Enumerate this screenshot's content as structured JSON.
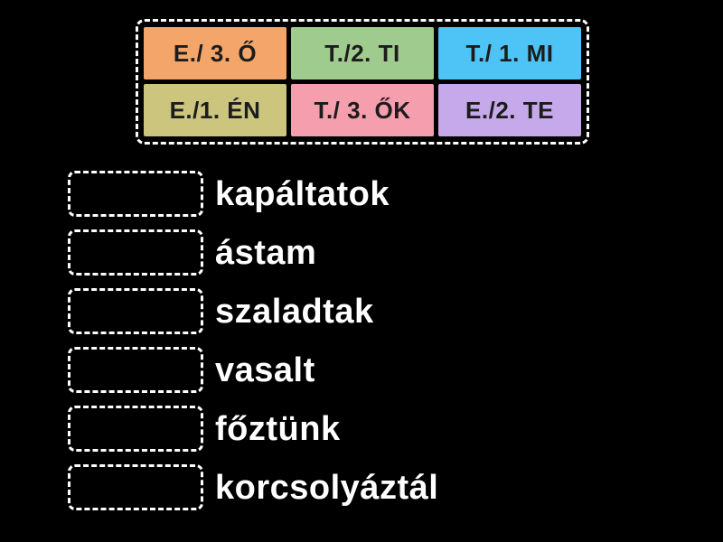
{
  "colors": {
    "background": "#000000",
    "dashed_border": "#ffffff",
    "tile_text": "#1c1c1c",
    "word_text": "#ffffff"
  },
  "tray": {
    "tiles": [
      {
        "label": "E./ 3. Ő",
        "color": "#f4a66a"
      },
      {
        "label": "T./2. TI",
        "color": "#a0cb8e"
      },
      {
        "label": "T./ 1. MI",
        "color": "#4dc4f5"
      },
      {
        "label": "E./1. ÉN",
        "color": "#cbc57d"
      },
      {
        "label": "T./ 3. ŐK",
        "color": "#f49eae"
      },
      {
        "label": "E./2. TE",
        "color": "#c5a9eb"
      }
    ]
  },
  "questions": [
    {
      "word": "kapáltatok"
    },
    {
      "word": "ástam"
    },
    {
      "word": "szaladtak"
    },
    {
      "word": "vasalt"
    },
    {
      "word": "főztünk"
    },
    {
      "word": "korcsolyáztál"
    }
  ]
}
